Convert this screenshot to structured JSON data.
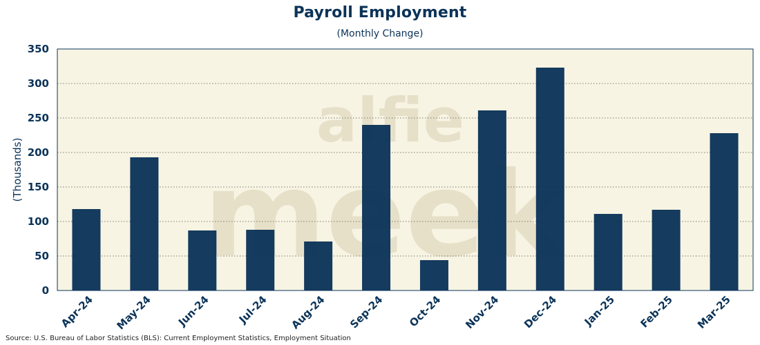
{
  "chart_data": {
    "type": "bar",
    "title": "Payroll Employment",
    "subtitle": "(Monthly Change)",
    "xlabel": "",
    "ylabel": "(Thousands)",
    "ylim": [
      0,
      350
    ],
    "yticks": [
      0,
      50,
      100,
      150,
      200,
      250,
      300,
      350
    ],
    "grid": true,
    "legend": "none",
    "categories": [
      "Apr-24",
      "May-24",
      "Jun-24",
      "Jul-24",
      "Aug-24",
      "Sep-24",
      "Oct-24",
      "Nov-24",
      "Dec-24",
      "Jan-25",
      "Feb-25",
      "Mar-25"
    ],
    "values": [
      118,
      193,
      87,
      88,
      71,
      240,
      44,
      261,
      323,
      111,
      117,
      228
    ],
    "bar_color": "#0b3358",
    "plot_background": "#f7f4e3",
    "watermark": [
      "alfie",
      "meek"
    ]
  },
  "source": "Source: U.S. Bureau of Labor Statistics (BLS): Current Employment Statistics, Employment Situation"
}
